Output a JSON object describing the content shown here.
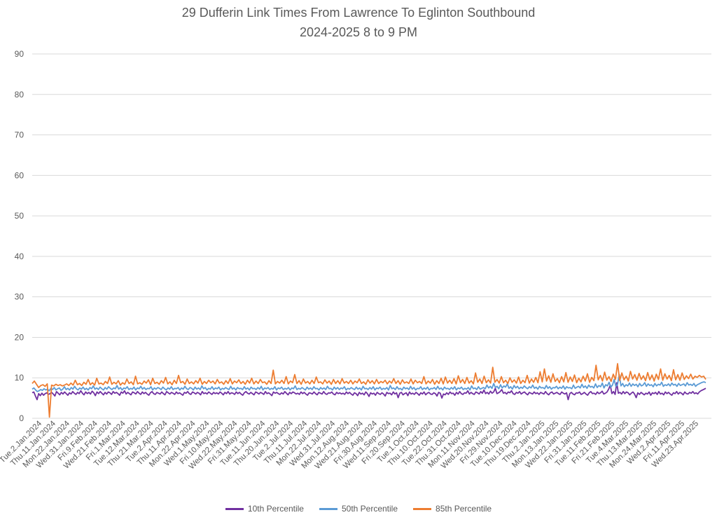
{
  "chart_data": {
    "type": "line",
    "title": "29 Dufferin Link Times From Lawrence To Eglinton Southbound",
    "subtitle": "2024-2025 8 to 9 PM",
    "xlabel": "",
    "ylabel": "",
    "ylim": [
      0,
      90
    ],
    "yticks": [
      0,
      10,
      20,
      30,
      40,
      50,
      60,
      70,
      80,
      90
    ],
    "grid": true,
    "legend_position": "bottom",
    "x_tick_labels": [
      "Tue.2.Jan.2024",
      "Thu.11.Jan.2024",
      "Mon.22.Jan.2024",
      "Wed.31.Jan.2024",
      "Fri.9.Feb.2024",
      "Wed.21.Feb.2024",
      "Fri.1.Mar.2024",
      "Tue.12.Mar.2024",
      "Thu.21.Mar.2024",
      "Tue.2.Apr.2024",
      "Thu.11.Apr.2024",
      "Mon.22.Apr.2024",
      "Wed.1.May.2024",
      "Fri.10.May.2024",
      "Wed.22.May.2024",
      "Fri.31.May.2024",
      "Tue.11.Jun.2024",
      "Thu.20.Jun.2024",
      "Tue.2.Jul.2024",
      "Thu.11.Jul.2024",
      "Mon.22.Jul.2024",
      "Wed.31.Jul.2024",
      "Mon.12.Aug.2024",
      "Wed.21.Aug.2024",
      "Fri.30.Aug.2024",
      "Wed.11.Sep.2024",
      "Fri.20.Sep.2024",
      "Tue.1.Oct.2024",
      "Thu.10.Oct.2024",
      "Tue.22.Oct.2024",
      "Thu.31.Oct.2024",
      "Mon.11.Nov.2024",
      "Wed.20.Nov.2024",
      "Fri.29.Nov.2024",
      "Tue.10.Dec.2024",
      "Thu.19.Dec.2024",
      "Thu.2.Jan.2025",
      "Mon.13.Jan.2025",
      "Wed.22.Jan.2025",
      "Fri.31.Jan.2025",
      "Tue.11.Feb.2025",
      "Fri.21.Feb.2025",
      "Tue.4.Mar.2025",
      "Thu.13.Mar.2025",
      "Mon.24.Mar.2025",
      "Wed.2.Apr.2025",
      "Fri.11.Apr.2025",
      "Wed.23.Apr.2025"
    ],
    "series": [
      {
        "name": "10th Percentile",
        "color": "#7030A0",
        "values": [
          6.3,
          6.5,
          5.5,
          4.6,
          6.1,
          5.6,
          6.2,
          5.7,
          6.1,
          6.3,
          5.9,
          6.1,
          6.4,
          6.0,
          5.5,
          6.6,
          6.2,
          5.8,
          6.4,
          6.0,
          6.5,
          6.1,
          5.7,
          6.3,
          6.0,
          6.6,
          6.2,
          5.9,
          6.4,
          6.1,
          6.8,
          6.2,
          5.8,
          6.5,
          6.1,
          6.4,
          6.0,
          6.7,
          6.3,
          5.6,
          6.5,
          6.1,
          6.6,
          6.2,
          5.8,
          6.4,
          6.0,
          6.5,
          6.3,
          5.9,
          6.6,
          6.2,
          6.4,
          6.1,
          5.7,
          6.5,
          6.2,
          6.8,
          6.0,
          6.4,
          6.1,
          5.8,
          6.5,
          6.3,
          6.0,
          6.6,
          6.2,
          5.9,
          6.5,
          6.1,
          6.4,
          6.0,
          5.7,
          6.3,
          6.6,
          6.1,
          5.9,
          6.4,
          6.2,
          6.0,
          6.5,
          6.1,
          5.8,
          6.6,
          6.3,
          6.0,
          6.4,
          6.2,
          5.9,
          6.5,
          6.1,
          6.3,
          6.0,
          5.7,
          6.4,
          6.2,
          6.6,
          6.1,
          5.9,
          6.5,
          6.3,
          6.0,
          6.4,
          6.2,
          5.8,
          6.6,
          6.1,
          6.3,
          6.0,
          6.5,
          6.2,
          5.9,
          6.4,
          6.1,
          6.3,
          6.0,
          6.5,
          6.2,
          5.8,
          6.4,
          6.1,
          6.6,
          6.0,
          6.3,
          6.2,
          5.9,
          6.5,
          6.1,
          6.4,
          6.0,
          5.7,
          6.3,
          6.6,
          6.2,
          6.0,
          6.4,
          6.1,
          5.8,
          6.5,
          6.3,
          6.0,
          6.4,
          6.2,
          5.9,
          6.6,
          6.1,
          6.3,
          6.0,
          5.6,
          6.5,
          6.2,
          6.4,
          6.1,
          5.9,
          6.3,
          6.0,
          6.6,
          6.2,
          5.8,
          6.4,
          6.1,
          6.5,
          6.3,
          6.0,
          6.2,
          5.9,
          6.5,
          6.1,
          6.4,
          6.0,
          5.7,
          6.3,
          6.2,
          6.0,
          6.5,
          6.1,
          5.8,
          6.4,
          6.2,
          6.0,
          6.6,
          6.1,
          5.9,
          6.3,
          6.2,
          6.5,
          6.0,
          5.8,
          6.4,
          6.1,
          6.3,
          6.0,
          6.2,
          5.9,
          6.5,
          6.1,
          6.4,
          6.0,
          5.7,
          6.3,
          6.1,
          5.6,
          6.4,
          6.0,
          6.2,
          5.8,
          6.5,
          6.1,
          5.4,
          6.3,
          6.0,
          6.2,
          5.7,
          6.4,
          6.1,
          5.9,
          6.3,
          6.0,
          5.5,
          6.4,
          6.1,
          6.2,
          5.8,
          6.5,
          6.0,
          6.3,
          5.1,
          6.2,
          6.4,
          5.8,
          6.1,
          6.3,
          5.6,
          6.5,
          6.0,
          6.2,
          5.9,
          6.4,
          6.1,
          5.7,
          6.3,
          6.0,
          6.5,
          5.8,
          6.2,
          6.4,
          6.0,
          5.9,
          6.3,
          6.1,
          5.5,
          6.4,
          6.2,
          5.0,
          6.0,
          5.8,
          6.3,
          5.9,
          6.5,
          6.1,
          6.2,
          5.7,
          6.4,
          6.0,
          6.6,
          6.1,
          5.9,
          6.3,
          6.2,
          6.8,
          6.0,
          6.4,
          6.1,
          5.9,
          6.5,
          6.3,
          6.0,
          6.6,
          6.2,
          7.0,
          6.1,
          6.4,
          6.0,
          6.7,
          6.2,
          6.5,
          7.4,
          6.1,
          6.3,
          6.6,
          7.1,
          6.2,
          6.4,
          6.0,
          6.5,
          6.3,
          6.8,
          6.1,
          5.9,
          6.4,
          6.2,
          6.6,
          6.0,
          6.3,
          6.5,
          6.1,
          5.8,
          6.4,
          6.2,
          6.0,
          6.5,
          6.1,
          6.3,
          5.9,
          6.4,
          6.2,
          6.0,
          6.6,
          6.1,
          5.8,
          6.3,
          6.5,
          6.0,
          6.2,
          6.4,
          6.1,
          5.9,
          6.5,
          6.2,
          6.0,
          6.3,
          4.6,
          6.1,
          6.4,
          6.0,
          5.8,
          6.3,
          6.2,
          6.5,
          5.9,
          6.1,
          6.4,
          6.0,
          5.7,
          6.3,
          6.6,
          6.1,
          6.2,
          5.9,
          6.5,
          6.1,
          6.3,
          6.7,
          6.0,
          6.2,
          6.5,
          7.2,
          8.2,
          6.1,
          6.6,
          5.9,
          8.8,
          6.2,
          6.4,
          6.0,
          6.6,
          6.1,
          6.5,
          6.3,
          5.8,
          6.2,
          6.5,
          6.0,
          5.1,
          6.3,
          5.9,
          6.4,
          6.1,
          5.8,
          6.2,
          6.0,
          6.5,
          5.7,
          6.3,
          6.1,
          6.4,
          5.9,
          6.6,
          6.0,
          6.2,
          5.8,
          6.5,
          6.1,
          6.4,
          6.0,
          5.7,
          6.3,
          6.1,
          6.6,
          6.0,
          6.4,
          6.2,
          5.8,
          6.5,
          6.1,
          6.0,
          6.4,
          6.2,
          6.6,
          6.1,
          6.3,
          6.0,
          6.5,
          6.8,
          7.0,
          7.2,
          7.4
        ]
      },
      {
        "name": "50th Percentile",
        "color": "#5B9BD5",
        "values": [
          7.2,
          7.5,
          7.0,
          6.6,
          6.8,
          7.1,
          6.9,
          7.3,
          7.0,
          7.2,
          6.8,
          7.4,
          7.1,
          7.6,
          7.0,
          7.3,
          7.5,
          6.9,
          7.2,
          7.8,
          7.1,
          7.4,
          7.0,
          7.6,
          7.2,
          7.9,
          7.3,
          7.0,
          7.5,
          7.2,
          7.7,
          7.1,
          7.4,
          7.0,
          7.6,
          7.3,
          8.0,
          7.2,
          7.5,
          7.1,
          7.7,
          7.3,
          7.0,
          7.6,
          7.2,
          7.8,
          7.4,
          7.1,
          7.5,
          7.3,
          8.1,
          7.2,
          7.6,
          7.0,
          7.5,
          7.3,
          7.8,
          7.1,
          7.4,
          7.2,
          7.7,
          7.0,
          7.5,
          7.3,
          7.9,
          7.2,
          7.6,
          7.1,
          7.4,
          7.3,
          7.8,
          7.0,
          7.5,
          7.2,
          7.6,
          7.4,
          7.1,
          7.7,
          7.3,
          7.0,
          7.5,
          7.2,
          7.8,
          7.1,
          7.4,
          7.3,
          7.6,
          7.0,
          7.5,
          7.2,
          7.9,
          7.3,
          7.1,
          7.6,
          7.4,
          7.0,
          7.7,
          7.2,
          7.5,
          7.1,
          8.0,
          7.3,
          7.6,
          7.0,
          7.4,
          7.2,
          7.8,
          7.1,
          7.5,
          7.3,
          7.7,
          7.0,
          7.4,
          7.2,
          7.6,
          7.3,
          7.1,
          7.9,
          7.2,
          7.5,
          7.0,
          7.6,
          7.3,
          7.4,
          7.1,
          7.8,
          7.2,
          7.5,
          7.0,
          7.7,
          7.3,
          7.4,
          7.1,
          7.6,
          7.2,
          7.9,
          7.0,
          7.5,
          7.3,
          7.6,
          7.1,
          7.4,
          7.2,
          7.8,
          7.0,
          7.5,
          7.3,
          7.7,
          7.1,
          7.4,
          7.2,
          7.6,
          7.0,
          7.5,
          7.3,
          8.0,
          7.1,
          7.4,
          7.2,
          7.6,
          7.3,
          7.0,
          7.7,
          7.2,
          7.5,
          7.1,
          7.8,
          7.3,
          7.4,
          7.0,
          7.6,
          7.2,
          7.5,
          7.1,
          7.9,
          7.3,
          7.4,
          7.0,
          7.7,
          7.2,
          7.6,
          7.1,
          7.5,
          7.3,
          7.8,
          7.0,
          7.4,
          7.2,
          7.6,
          7.3,
          7.1,
          7.7,
          7.2,
          7.5,
          7.0,
          7.9,
          7.3,
          7.4,
          7.1,
          7.6,
          7.2,
          7.8,
          7.0,
          7.5,
          7.3,
          7.7,
          7.1,
          7.4,
          7.2,
          7.6,
          7.0,
          8.1,
          7.3,
          7.5,
          7.1,
          7.8,
          7.2,
          7.4,
          7.0,
          7.7,
          7.3,
          7.5,
          7.1,
          7.9,
          7.2,
          7.6,
          7.0,
          7.4,
          7.3,
          7.8,
          7.1,
          7.5,
          7.2,
          7.7,
          7.0,
          7.4,
          7.3,
          7.6,
          7.1,
          7.9,
          7.2,
          7.5,
          7.0,
          7.7,
          7.3,
          7.4,
          7.1,
          7.6,
          7.2,
          7.8,
          7.0,
          7.5,
          7.3,
          7.7,
          7.1,
          7.4,
          7.2,
          7.6,
          7.0,
          8.0,
          7.3,
          7.5,
          7.1,
          7.8,
          7.2,
          7.4,
          7.6,
          7.3,
          8.2,
          7.5,
          7.9,
          7.4,
          8.6,
          7.6,
          7.9,
          7.3,
          8.3,
          7.5,
          8.0,
          7.7,
          8.5,
          7.4,
          7.8,
          7.2,
          8.1,
          7.5,
          7.9,
          7.3,
          7.7,
          7.4,
          8.0,
          7.6,
          7.3,
          7.8,
          7.5,
          8.2,
          7.4,
          7.7,
          7.2,
          7.9,
          7.5,
          7.6,
          7.3,
          8.1,
          7.4,
          7.8,
          7.2,
          7.6,
          7.5,
          7.9,
          7.3,
          7.7,
          7.4,
          8.0,
          7.2,
          7.8,
          7.5,
          7.6,
          7.3,
          8.2,
          7.4,
          7.7,
          7.9,
          7.5,
          8.4,
          7.6,
          8.0,
          7.4,
          8.2,
          7.7,
          7.9,
          7.5,
          8.5,
          7.6,
          8.1,
          7.8,
          8.7,
          7.5,
          8.3,
          8.0,
          8.9,
          7.7,
          8.2,
          9.6,
          7.9,
          8.4,
          10.8,
          8.0,
          8.6,
          7.8,
          8.3,
          8.0,
          8.7,
          7.9,
          8.5,
          8.1,
          8.4,
          7.8,
          8.6,
          8.0,
          8.2,
          8.8,
          7.9,
          8.5,
          8.1,
          8.3,
          7.8,
          8.6,
          8.0,
          8.4,
          8.2,
          8.9,
          7.9,
          8.3,
          8.1,
          8.5,
          8.0,
          8.7,
          8.2,
          8.4,
          7.9,
          8.6,
          8.1,
          8.3,
          8.5,
          8.0,
          8.8,
          8.2,
          8.4,
          8.1,
          8.6,
          7.9,
          8.3,
          8.5,
          8.7,
          8.9,
          9.0,
          8.8
        ]
      },
      {
        "name": "85th Percentile",
        "color": "#ED7D31",
        "values": [
          8.6,
          9.2,
          8.4,
          7.6,
          8.1,
          8.3,
          7.9,
          8.5,
          0.3,
          8.2,
          8.0,
          8.4,
          8.1,
          8.3,
          8.0,
          8.2,
          8.5,
          8.1,
          8.7,
          8.2,
          9.4,
          8.3,
          8.6,
          8.1,
          8.9,
          8.4,
          9.6,
          8.3,
          8.8,
          8.2,
          9.9,
          8.5,
          8.7,
          8.3,
          9.1,
          8.6,
          10.2,
          8.4,
          8.9,
          8.5,
          9.3,
          8.2,
          8.8,
          8.4,
          9.7,
          8.6,
          9.0,
          8.3,
          10.4,
          8.5,
          8.8,
          8.4,
          9.2,
          8.7,
          9.5,
          8.3,
          9.9,
          8.6,
          8.9,
          8.4,
          9.3,
          8.7,
          10.1,
          8.5,
          9.0,
          8.3,
          9.4,
          8.6,
          10.6,
          8.8,
          9.1,
          8.4,
          9.7,
          8.6,
          9.0,
          8.5,
          9.3,
          8.7,
          9.9,
          8.4,
          9.1,
          8.6,
          9.4,
          8.8,
          9.2,
          8.5,
          9.6,
          8.7,
          9.0,
          8.4,
          9.3,
          8.6,
          9.8,
          8.5,
          9.2,
          8.8,
          9.5,
          8.6,
          9.1,
          8.4,
          9.4,
          8.7,
          9.9,
          8.5,
          9.2,
          8.6,
          9.6,
          8.8,
          9.0,
          8.4,
          9.3,
          8.6,
          11.9,
          8.5,
          9.1,
          8.7,
          9.4,
          8.6,
          10.3,
          8.5,
          9.2,
          8.8,
          10.8,
          8.6,
          9.3,
          8.4,
          9.7,
          8.7,
          9.1,
          8.5,
          9.4,
          8.6,
          10.2,
          8.8,
          9.0,
          8.5,
          9.5,
          8.7,
          9.2,
          8.4,
          9.6,
          8.6,
          9.3,
          8.5,
          9.8,
          8.7,
          9.1,
          8.6,
          9.4,
          8.5,
          9.2,
          8.8,
          9.7,
          8.6,
          9.0,
          8.4,
          9.5,
          8.7,
          9.3,
          8.5,
          9.6,
          8.6,
          9.1,
          8.8,
          9.4,
          8.5,
          9.2,
          8.7,
          9.8,
          8.6,
          9.3,
          8.4,
          9.5,
          8.7,
          9.0,
          8.6,
          9.7,
          8.5,
          9.4,
          8.8,
          9.1,
          8.6,
          10.3,
          8.5,
          9.2,
          8.7,
          9.6,
          8.4,
          9.3,
          8.6,
          9.9,
          8.5,
          10.2,
          8.7,
          9.4,
          8.6,
          9.8,
          8.5,
          10.5,
          8.8,
          9.6,
          8.6,
          10.1,
          8.7,
          9.3,
          8.5,
          11.2,
          8.9,
          9.7,
          8.6,
          10.4,
          8.8,
          9.5,
          8.7,
          12.6,
          8.9,
          9.6,
          8.7,
          10.3,
          8.8,
          9.4,
          8.6,
          10.0,
          8.9,
          9.5,
          8.7,
          10.2,
          8.6,
          9.4,
          8.8,
          10.6,
          8.7,
          9.7,
          8.9,
          10.1,
          8.8,
          11.5,
          9.0,
          12.2,
          9.2,
          10.5,
          8.9,
          11.0,
          9.1,
          9.8,
          8.8,
          10.3,
          9.0,
          11.3,
          8.9,
          10.2,
          9.1,
          10.7,
          8.8,
          9.9,
          9.0,
          10.4,
          9.2,
          11.0,
          8.9,
          10.1,
          9.3,
          13.1,
          9.5,
          10.6,
          9.2,
          11.4,
          9.4,
          10.3,
          9.1,
          10.9,
          9.6,
          13.5,
          9.3,
          11.2,
          9.5,
          10.4,
          9.2,
          11.6,
          9.7,
          10.8,
          9.4,
          11.1,
          9.6,
          10.5,
          9.3,
          11.3,
          9.5,
          10.7,
          9.2,
          10.9,
          9.6,
          12.2,
          9.4,
          11.0,
          9.7,
          10.6,
          9.3,
          12.0,
          9.5,
          10.8,
          9.4,
          11.2,
          9.6,
          10.5,
          9.8,
          10.9,
          9.7,
          10.4,
          10.1,
          10.6,
          10.2,
          10.4,
          9.6
        ]
      }
    ]
  }
}
